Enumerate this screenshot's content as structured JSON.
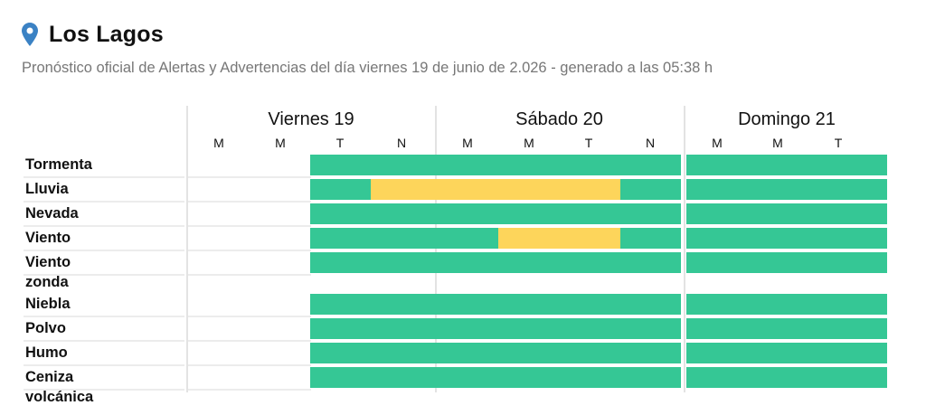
{
  "location": {
    "title": "Los Lagos",
    "icon": "map-pin-icon"
  },
  "subtitle": "Pronóstico oficial de Alertas y Advertencias del día viernes 19 de junio de 2.026 - generado a las 05:38 h",
  "colors": {
    "green": "#35c795",
    "yellow": "#fdd55b",
    "pin": "#3b82c4"
  },
  "days": [
    {
      "label": "Viernes 19",
      "slots": [
        "M",
        "M",
        "T",
        "N"
      ]
    },
    {
      "label": "Sábado 20",
      "slots": [
        "M",
        "M",
        "T",
        "N"
      ]
    },
    {
      "label": "Domingo 21",
      "slots": [
        "M",
        "M",
        "T"
      ]
    }
  ],
  "rows": [
    {
      "label": "Tormenta",
      "cells": [
        [
          "none",
          "none",
          "green",
          "green"
        ],
        [
          "green",
          "green",
          "green",
          "green"
        ],
        [
          "green",
          "green",
          "green"
        ]
      ]
    },
    {
      "label": "Lluvia",
      "cells": [
        [
          "none",
          "none",
          "green",
          "yellow"
        ],
        [
          "yellow",
          "yellow",
          "yellow",
          "green"
        ],
        [
          "green",
          "green",
          "green"
        ]
      ]
    },
    {
      "label": "Nevada",
      "cells": [
        [
          "none",
          "none",
          "green",
          "green"
        ],
        [
          "green",
          "green",
          "green",
          "green"
        ],
        [
          "green",
          "green",
          "green"
        ]
      ]
    },
    {
      "label": "Viento",
      "cells": [
        [
          "none",
          "none",
          "green",
          "green"
        ],
        [
          "green",
          "yellow",
          "yellow",
          "green"
        ],
        [
          "green",
          "green",
          "green"
        ]
      ]
    },
    {
      "label": "Viento zonda",
      "cells": [
        [
          "none",
          "none",
          "green",
          "green"
        ],
        [
          "green",
          "green",
          "green",
          "green"
        ],
        [
          "green",
          "green",
          "green"
        ]
      ]
    },
    {
      "label": "Niebla",
      "cells": [
        [
          "none",
          "none",
          "green",
          "green"
        ],
        [
          "green",
          "green",
          "green",
          "green"
        ],
        [
          "green",
          "green",
          "green"
        ]
      ]
    },
    {
      "label": "Polvo",
      "cells": [
        [
          "none",
          "none",
          "green",
          "green"
        ],
        [
          "green",
          "green",
          "green",
          "green"
        ],
        [
          "green",
          "green",
          "green"
        ]
      ]
    },
    {
      "label": "Humo",
      "cells": [
        [
          "none",
          "none",
          "green",
          "green"
        ],
        [
          "green",
          "green",
          "green",
          "green"
        ],
        [
          "green",
          "green",
          "green"
        ]
      ]
    },
    {
      "label": "Ceniza volcánica",
      "cells": [
        [
          "none",
          "none",
          "green",
          "green"
        ],
        [
          "green",
          "green",
          "green",
          "green"
        ],
        [
          "green",
          "green",
          "green"
        ]
      ]
    }
  ]
}
